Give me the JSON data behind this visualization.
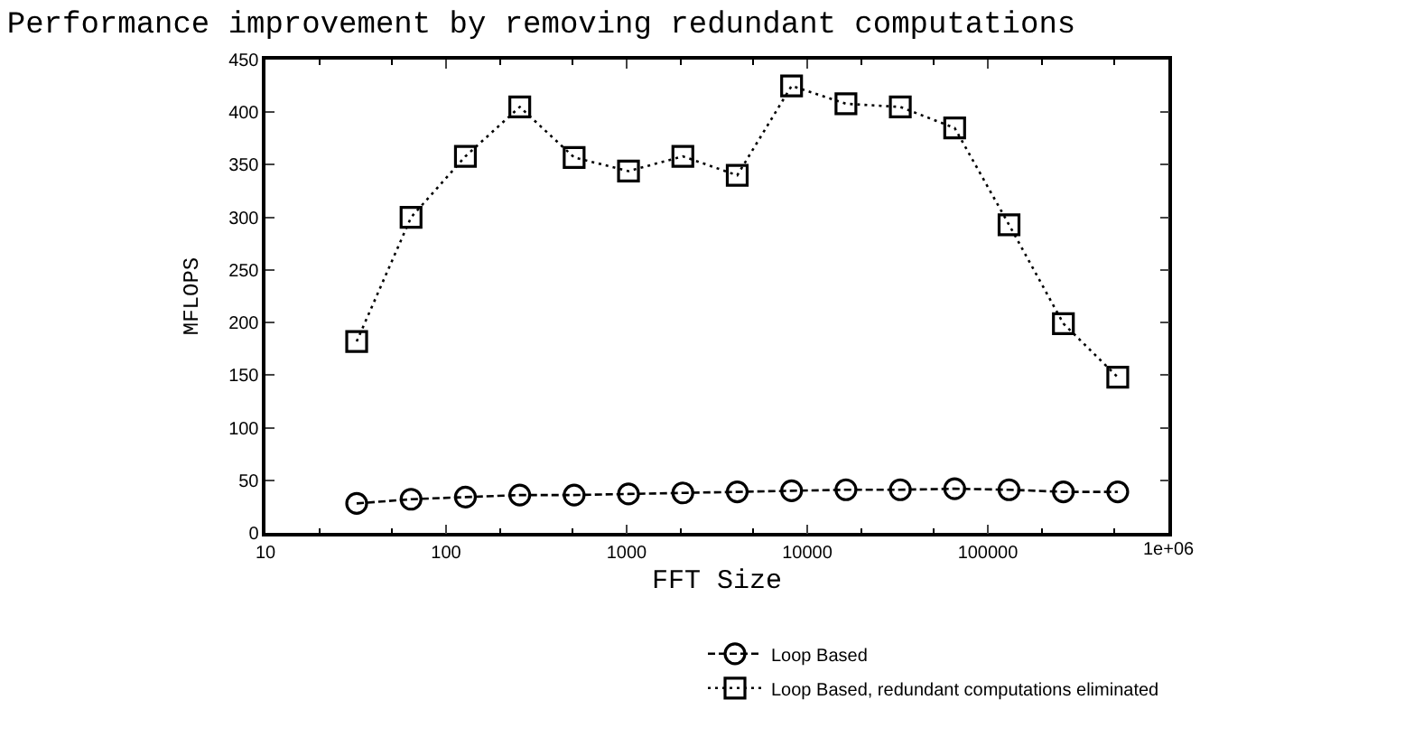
{
  "chart_data": {
    "type": "line",
    "title": "Performance improvement by removing redundant computations",
    "xlabel": "FFT Size",
    "ylabel": "MFLOPS",
    "x": [
      32,
      64,
      128,
      256,
      512,
      1024,
      2048,
      4096,
      8192,
      16384,
      32768,
      65536,
      131072,
      262144,
      524288
    ],
    "series": [
      {
        "name": "Loop Based",
        "color": "#000000",
        "marker": "circle",
        "line_style": "dashed",
        "values": [
          28,
          32,
          34,
          36,
          36,
          37,
          38,
          39,
          40,
          41,
          41,
          42,
          41,
          39,
          39
        ]
      },
      {
        "name": "Loop Based, redundant computations eliminated",
        "color": "#000000",
        "marker": "square",
        "line_style": "dotted",
        "values": [
          182,
          300,
          358,
          405,
          357,
          344,
          358,
          340,
          425,
          408,
          405,
          385,
          293,
          199,
          148
        ]
      }
    ],
    "log": "x",
    "xlim": [
      10,
      1000000
    ],
    "xticks": [
      10,
      100,
      1000,
      10000,
      100000,
      {
        "value": 1000000,
        "label": "1e+06"
      }
    ],
    "ylim": [
      0,
      450
    ],
    "yticks": [
      0,
      50,
      100,
      150,
      200,
      250,
      300,
      350,
      400,
      450
    ],
    "grid": false,
    "legend": "bottom right"
  }
}
